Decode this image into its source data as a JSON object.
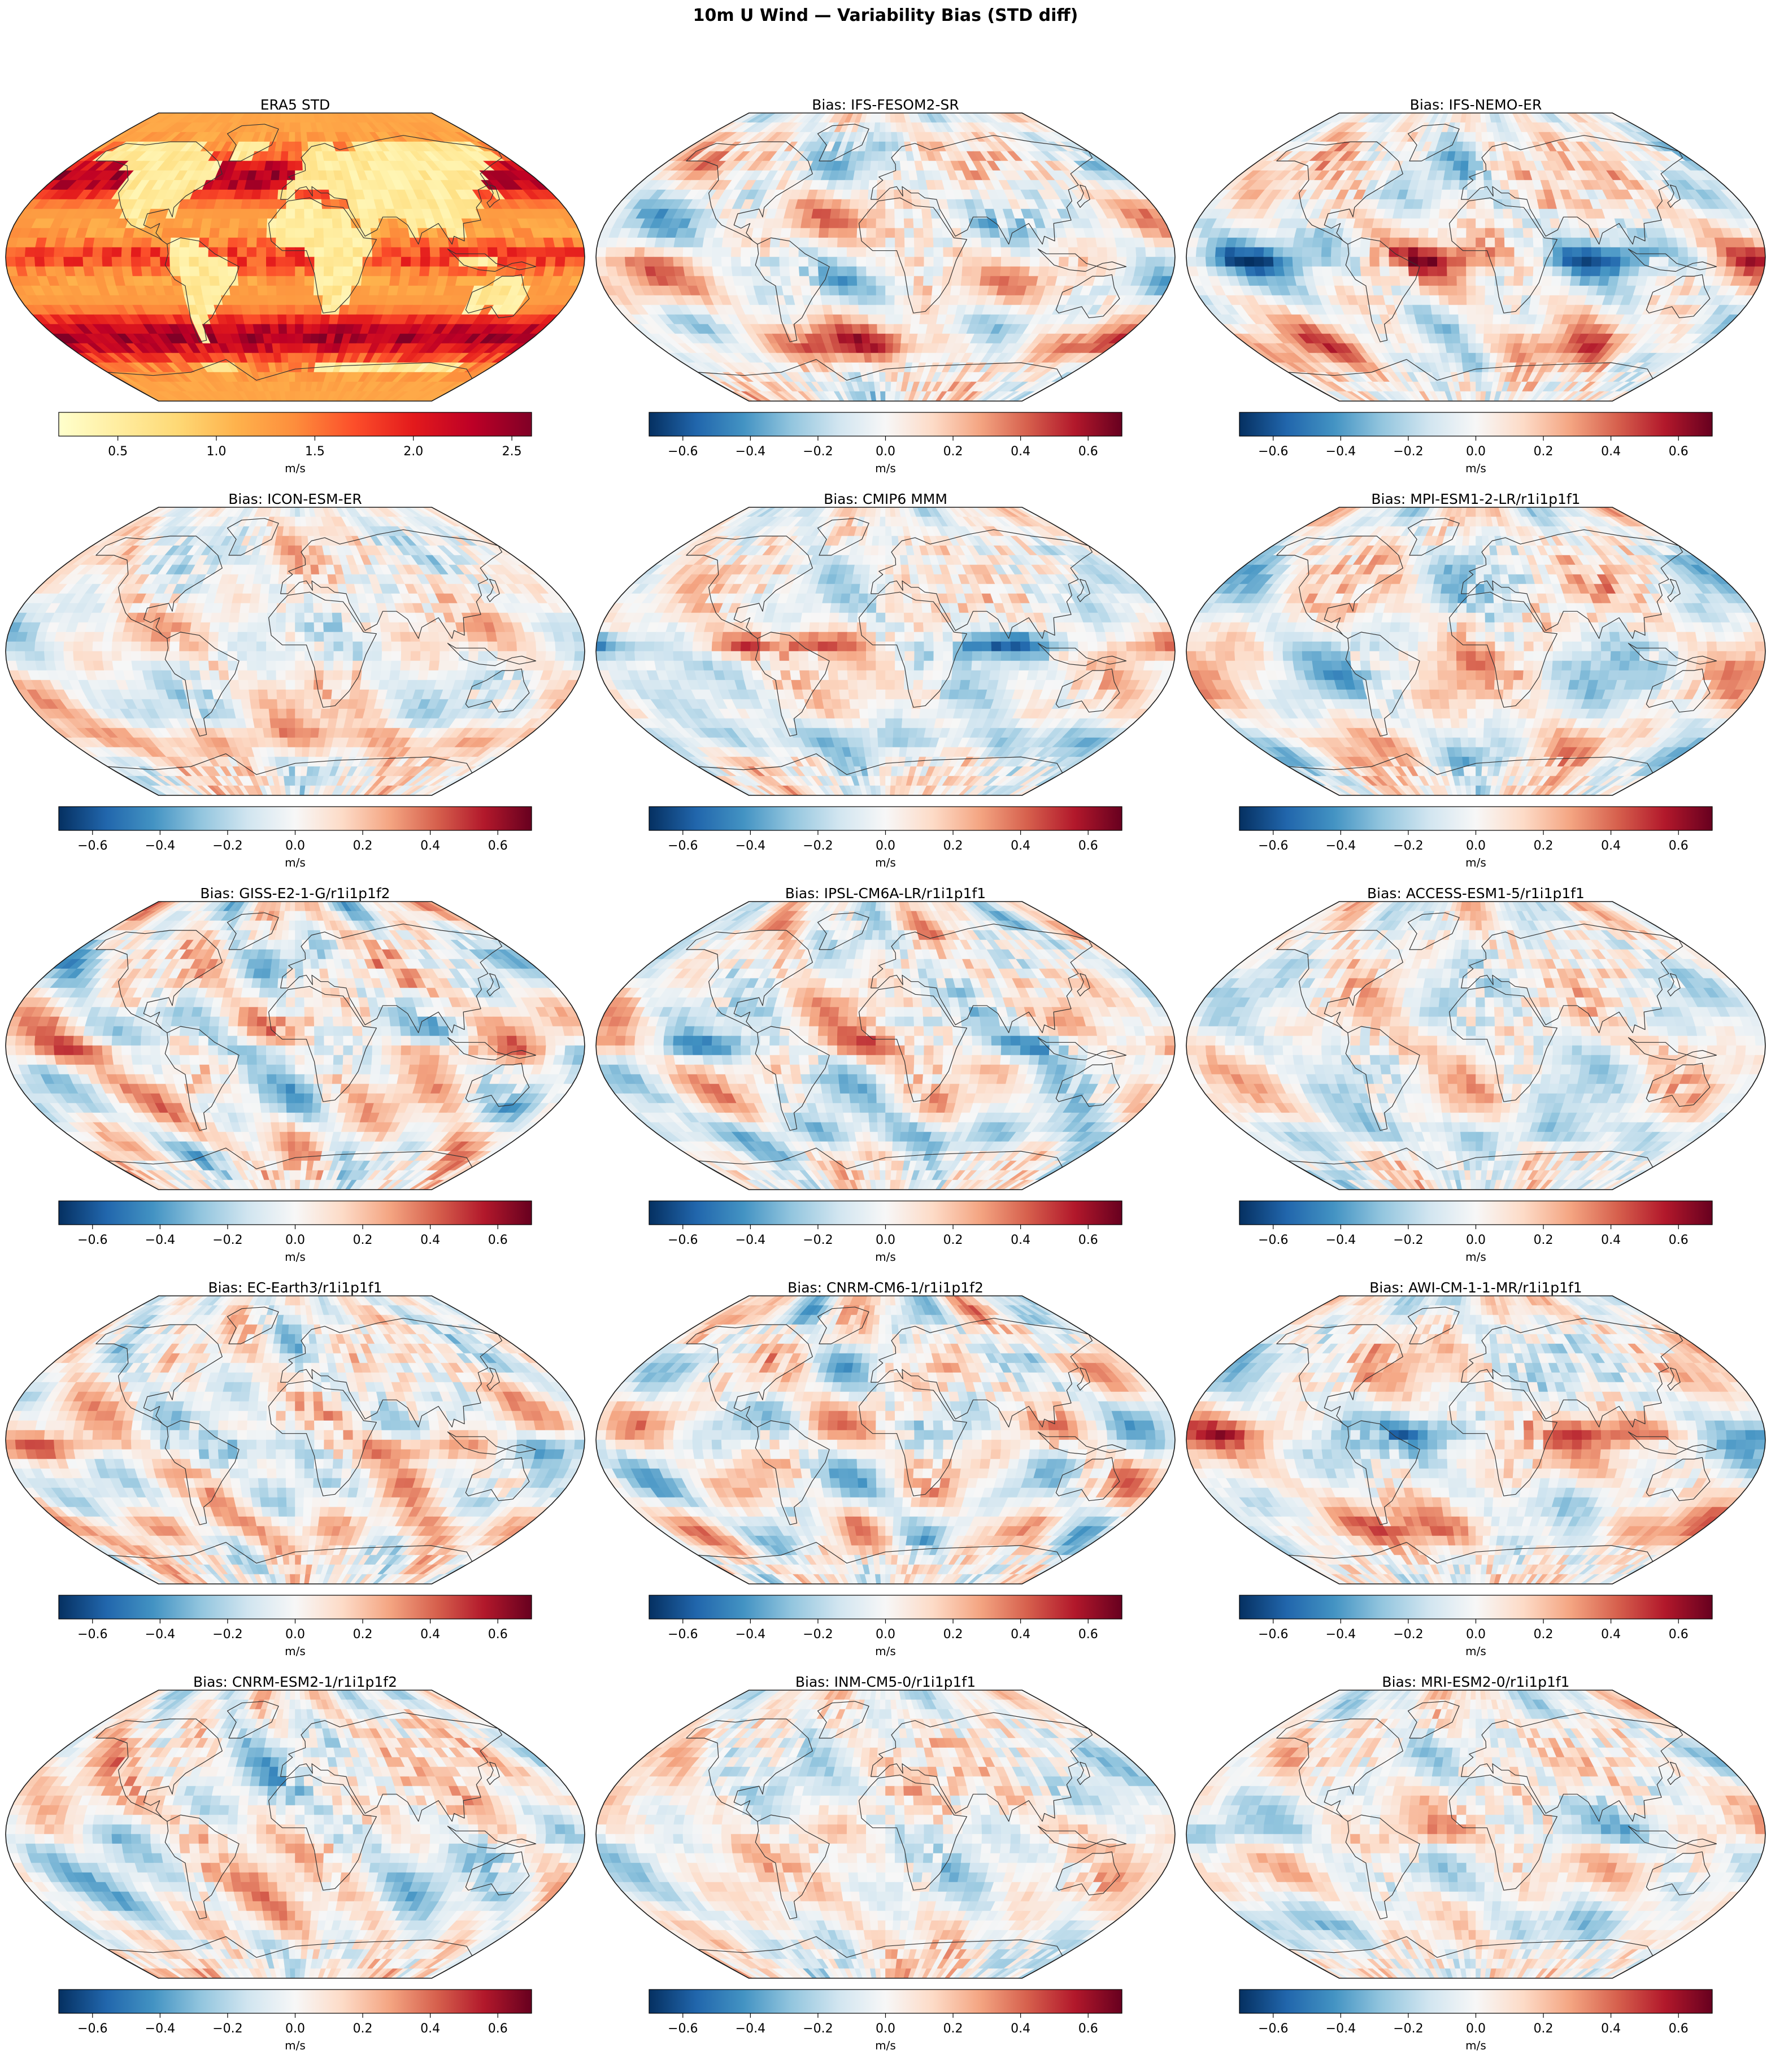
{
  "figure": {
    "title": "10m U Wind — Variability Bias (STD diff)"
  },
  "colors": {
    "coast": "#333333",
    "frame": "#1a1a1a"
  },
  "colormaps": {
    "YlOrRd": [
      "#ffffcc",
      "#ffeda0",
      "#fed976",
      "#feb24c",
      "#fd8d3c",
      "#fc4e2a",
      "#e31a1c",
      "#bd0026",
      "#800026"
    ],
    "RdBu_r": [
      "#053061",
      "#2166ac",
      "#4393c3",
      "#92c5de",
      "#d1e5f0",
      "#f7f7f7",
      "#fddbc7",
      "#f4a582",
      "#d6604d",
      "#b2182b",
      "#67001f"
    ]
  },
  "colorbars": {
    "std": {
      "cmap": "YlOrRd",
      "min": 0.2,
      "max": 2.6,
      "ticks": [
        0.5,
        1.0,
        1.5,
        2.0,
        2.5
      ],
      "tick_labels": [
        "0.5",
        "1.0",
        "1.5",
        "2.0",
        "2.5"
      ],
      "unit": "m/s"
    },
    "bias": {
      "cmap": "RdBu_r",
      "min": -0.7,
      "max": 0.7,
      "ticks": [
        -0.6,
        -0.4,
        -0.2,
        0,
        0.2,
        0.4,
        0.6
      ],
      "tick_labels": [
        "−0.6",
        "−0.4",
        "−0.2",
        "0.0",
        "0.2",
        "0.4",
        "0.6"
      ],
      "unit": "m/s"
    }
  },
  "panels": [
    {
      "title": "ERA5 STD",
      "colorbar": "std",
      "seed": 3
    },
    {
      "title": "Bias: IFS-FESOM2-SR",
      "colorbar": "bias",
      "seed": 11
    },
    {
      "title": "Bias: IFS-NEMO-ER",
      "colorbar": "bias",
      "seed": 17
    },
    {
      "title": "Bias: ICON-ESM-ER",
      "colorbar": "bias",
      "seed": 23
    },
    {
      "title": "Bias: CMIP6 MMM",
      "colorbar": "bias",
      "seed": 29
    },
    {
      "title": "Bias: MPI-ESM1-2-LR/r1i1p1f1",
      "colorbar": "bias",
      "seed": 31
    },
    {
      "title": "Bias: GISS-E2-1-G/r1i1p1f2",
      "colorbar": "bias",
      "seed": 37
    },
    {
      "title": "Bias: IPSL-CM6A-LR/r1i1p1f1",
      "colorbar": "bias",
      "seed": 41
    },
    {
      "title": "Bias: ACCESS-ESM1-5/r1i1p1f1",
      "colorbar": "bias",
      "seed": 43
    },
    {
      "title": "Bias: EC-Earth3/r1i1p1f1",
      "colorbar": "bias",
      "seed": 47
    },
    {
      "title": "Bias: CNRM-CM6-1/r1i1p1f2",
      "colorbar": "bias",
      "seed": 53
    },
    {
      "title": "Bias: AWI-CM-1-1-MR/r1i1p1f1",
      "colorbar": "bias",
      "seed": 59
    },
    {
      "title": "Bias: CNRM-ESM2-1/r1i1p1f2",
      "colorbar": "bias",
      "seed": 61
    },
    {
      "title": "Bias: INM-CM5-0/r1i1p1f1",
      "colorbar": "bias",
      "seed": 67
    },
    {
      "title": "Bias: MRI-ESM2-0/r1i1p1f1",
      "colorbar": "bias",
      "seed": 71
    }
  ]
}
